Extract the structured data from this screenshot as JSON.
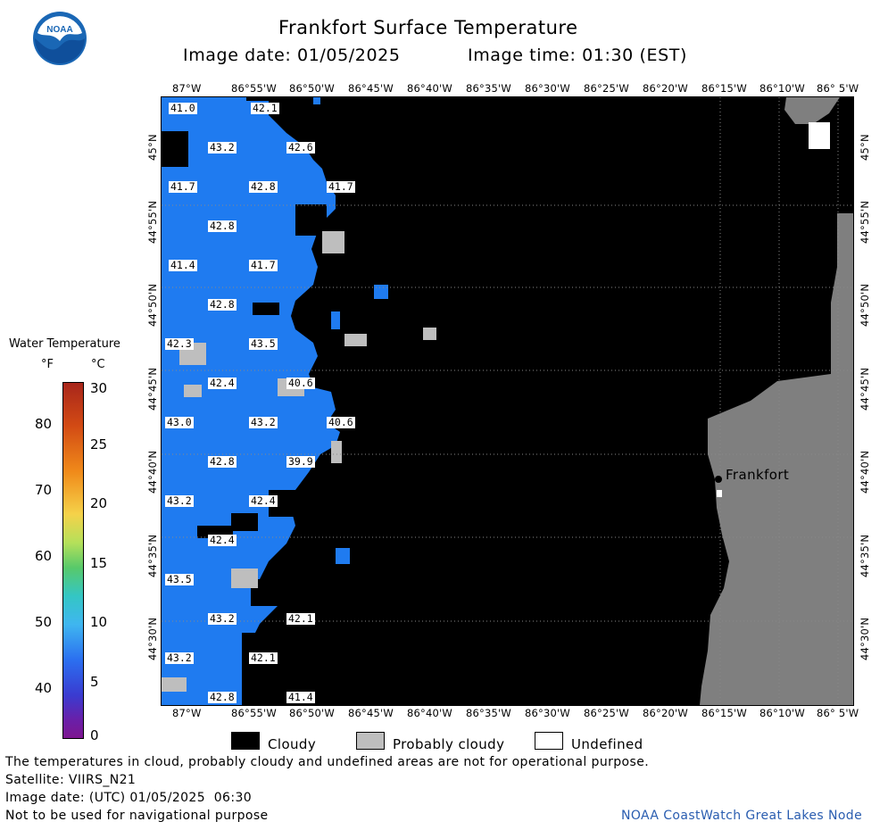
{
  "header": {
    "title": "Frankfort Surface Temperature",
    "image_date": "Image date: 01/05/2025",
    "image_time": "Image time: 01:30 (EST)"
  },
  "logo": {
    "text": "NOAA"
  },
  "longitudes": [
    "87°W",
    "86°55'W",
    "86°50'W",
    "86°45'W",
    "86°40'W",
    "86°35'W",
    "86°30'W",
    "86°25'W",
    "86°20'W",
    "86°15'W",
    "86°10'W",
    "86° 5'W"
  ],
  "latitudes": [
    "45°N",
    "44°55'N",
    "44°50'N",
    "44°45'N",
    "44°40'N",
    "44°35'N",
    "44°30'N"
  ],
  "map": {
    "place_label": "Frankfort",
    "temperature_labels": [
      "41.0",
      "42.1",
      "43.2",
      "42.6",
      "41.7",
      "42.8",
      "41.7",
      "42.8",
      "41.4",
      "41.7",
      "42.8",
      "42.3",
      "43.5",
      "42.4",
      "40.6",
      "43.0",
      "43.2",
      "40.6",
      "42.8",
      "39.9",
      "43.2",
      "42.4",
      "42.4",
      "43.5",
      "43.2",
      "42.1",
      "43.2",
      "42.1",
      "42.8",
      "41.4"
    ],
    "colors": {
      "water": "#1f7bf0",
      "cloud": "#000000",
      "land": "#7f7f7f",
      "probably_cloudy": "#bebebe"
    }
  },
  "colorbar": {
    "title": "Water Temperature",
    "unit_f": "°F",
    "unit_c": "°C",
    "f_ticks": [
      "80",
      "70",
      "60",
      "50",
      "40"
    ],
    "c_ticks": [
      "30",
      "25",
      "20",
      "15",
      "10",
      "5",
      "0"
    ]
  },
  "legend": {
    "cloudy": "Cloudy",
    "probably_cloudy": "Probably cloudy",
    "undefined": "Undefined"
  },
  "footer": {
    "disclaimer": "The temperatures in cloud, probably cloudy and undefined areas are not for operational purpose.",
    "satellite": "Satellite: VIIRS_N21",
    "utc_date": "Image date: (UTC) 01/05/2025  06:30",
    "nav": "Not to be used for navigational purpose",
    "credit": "NOAA CoastWatch Great Lakes Node"
  }
}
